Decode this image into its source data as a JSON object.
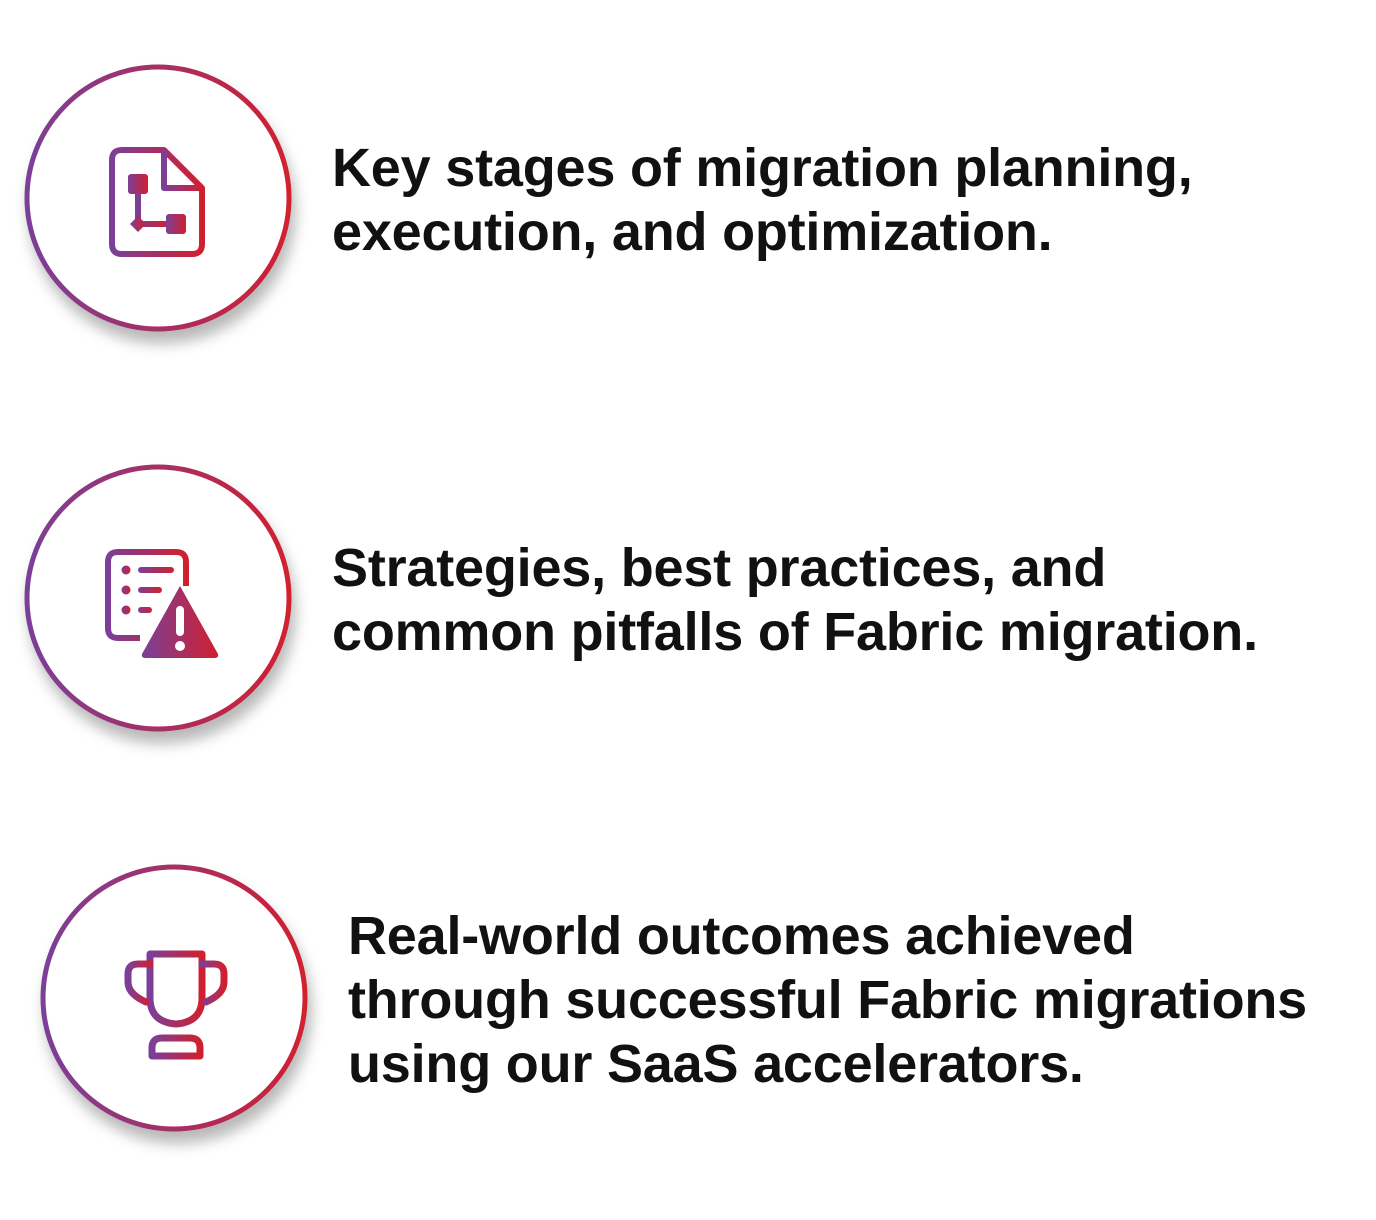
{
  "colors": {
    "gradient_start": "#7b3f98",
    "gradient_end": "#d0202f",
    "text": "#111111"
  },
  "items": [
    {
      "icon": "workflow-document-icon",
      "lines": [
        "Key stages of migration planning,",
        "execution, and optimization."
      ]
    },
    {
      "icon": "checklist-warning-icon",
      "lines": [
        "Strategies, best practices, and",
        "common pitfalls of Fabric migration."
      ]
    },
    {
      "icon": "trophy-icon",
      "lines": [
        "Real-world outcomes achieved",
        "through successful Fabric migrations",
        "using our SaaS accelerators."
      ]
    }
  ]
}
